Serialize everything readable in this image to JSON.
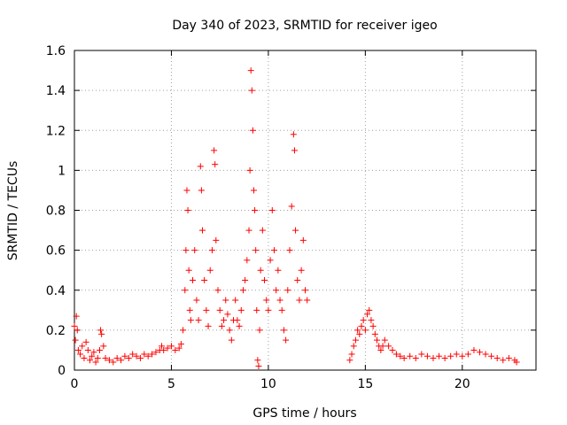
{
  "chart_data": {
    "type": "scatter",
    "title": "Day 340 of 2023, SRMTID for receiver igeo",
    "xlabel": "GPS time / hours",
    "ylabel": "SRMTID / TECUs",
    "xlim": [
      0,
      23.8
    ],
    "ylim": [
      0,
      1.6
    ],
    "x_ticks": [
      0,
      5,
      10,
      15,
      20
    ],
    "x_tick_labels": [
      "0",
      "5",
      "10",
      "15",
      "20"
    ],
    "y_ticks": [
      0,
      0.2,
      0.4,
      0.6,
      0.8,
      1.0,
      1.2,
      1.4,
      1.6
    ],
    "y_tick_labels": [
      "0",
      "0.2",
      "0.4",
      "0.6",
      "0.8",
      "1",
      "1.2",
      "1.4",
      "1.6"
    ],
    "grid": true,
    "marker": "+",
    "color": "#ff0000",
    "series": [
      {
        "name": "SRMTID",
        "points": [
          [
            0.0,
            0.22
          ],
          [
            0.05,
            0.15
          ],
          [
            0.1,
            0.27
          ],
          [
            0.15,
            0.2
          ],
          [
            0.2,
            0.1
          ],
          [
            0.3,
            0.08
          ],
          [
            0.4,
            0.12
          ],
          [
            0.5,
            0.06
          ],
          [
            0.6,
            0.14
          ],
          [
            0.7,
            0.1
          ],
          [
            0.8,
            0.05
          ],
          [
            0.9,
            0.07
          ],
          [
            1.0,
            0.09
          ],
          [
            1.1,
            0.04
          ],
          [
            1.2,
            0.06
          ],
          [
            1.3,
            0.1
          ],
          [
            1.35,
            0.2
          ],
          [
            1.4,
            0.18
          ],
          [
            1.5,
            0.12
          ],
          [
            1.6,
            0.06
          ],
          [
            1.8,
            0.05
          ],
          [
            2.0,
            0.04
          ],
          [
            2.2,
            0.06
          ],
          [
            2.4,
            0.05
          ],
          [
            2.6,
            0.07
          ],
          [
            2.8,
            0.06
          ],
          [
            3.0,
            0.08
          ],
          [
            3.2,
            0.07
          ],
          [
            3.4,
            0.06
          ],
          [
            3.6,
            0.08
          ],
          [
            3.8,
            0.07
          ],
          [
            4.0,
            0.08
          ],
          [
            4.2,
            0.09
          ],
          [
            4.4,
            0.1
          ],
          [
            4.5,
            0.12
          ],
          [
            4.6,
            0.1
          ],
          [
            4.8,
            0.11
          ],
          [
            5.0,
            0.12
          ],
          [
            5.2,
            0.1
          ],
          [
            5.4,
            0.11
          ],
          [
            5.5,
            0.13
          ],
          [
            5.6,
            0.2
          ],
          [
            5.7,
            0.4
          ],
          [
            5.75,
            0.6
          ],
          [
            5.8,
            0.9
          ],
          [
            5.85,
            0.8
          ],
          [
            5.9,
            0.5
          ],
          [
            5.95,
            0.3
          ],
          [
            6.0,
            0.25
          ],
          [
            6.1,
            0.45
          ],
          [
            6.2,
            0.6
          ],
          [
            6.3,
            0.35
          ],
          [
            6.4,
            0.25
          ],
          [
            6.5,
            1.02
          ],
          [
            6.55,
            0.9
          ],
          [
            6.6,
            0.7
          ],
          [
            6.7,
            0.45
          ],
          [
            6.8,
            0.3
          ],
          [
            6.9,
            0.22
          ],
          [
            7.0,
            0.5
          ],
          [
            7.1,
            0.6
          ],
          [
            7.2,
            1.1
          ],
          [
            7.25,
            1.03
          ],
          [
            7.3,
            0.65
          ],
          [
            7.4,
            0.4
          ],
          [
            7.5,
            0.3
          ],
          [
            7.6,
            0.22
          ],
          [
            7.7,
            0.25
          ],
          [
            7.8,
            0.35
          ],
          [
            7.9,
            0.28
          ],
          [
            8.0,
            0.2
          ],
          [
            8.1,
            0.15
          ],
          [
            8.2,
            0.25
          ],
          [
            8.3,
            0.35
          ],
          [
            8.4,
            0.25
          ],
          [
            8.5,
            0.22
          ],
          [
            8.6,
            0.3
          ],
          [
            8.7,
            0.4
          ],
          [
            8.8,
            0.45
          ],
          [
            8.9,
            0.55
          ],
          [
            9.0,
            0.7
          ],
          [
            9.05,
            1.0
          ],
          [
            9.1,
            1.5
          ],
          [
            9.15,
            1.4
          ],
          [
            9.2,
            1.2
          ],
          [
            9.25,
            0.9
          ],
          [
            9.3,
            0.8
          ],
          [
            9.35,
            0.6
          ],
          [
            9.4,
            0.3
          ],
          [
            9.45,
            0.05
          ],
          [
            9.5,
            0.02
          ],
          [
            9.55,
            0.2
          ],
          [
            9.6,
            0.5
          ],
          [
            9.7,
            0.7
          ],
          [
            9.8,
            0.45
          ],
          [
            9.9,
            0.35
          ],
          [
            10.0,
            0.3
          ],
          [
            10.1,
            0.55
          ],
          [
            10.2,
            0.8
          ],
          [
            10.3,
            0.6
          ],
          [
            10.4,
            0.4
          ],
          [
            10.5,
            0.5
          ],
          [
            10.6,
            0.35
          ],
          [
            10.7,
            0.3
          ],
          [
            10.8,
            0.2
          ],
          [
            10.9,
            0.15
          ],
          [
            11.0,
            0.4
          ],
          [
            11.1,
            0.6
          ],
          [
            11.2,
            0.82
          ],
          [
            11.3,
            1.18
          ],
          [
            11.35,
            1.1
          ],
          [
            11.4,
            0.7
          ],
          [
            11.5,
            0.45
          ],
          [
            11.6,
            0.35
          ],
          [
            11.7,
            0.5
          ],
          [
            11.8,
            0.65
          ],
          [
            11.9,
            0.4
          ],
          [
            12.0,
            0.35
          ],
          [
            14.2,
            0.05
          ],
          [
            14.3,
            0.08
          ],
          [
            14.4,
            0.12
          ],
          [
            14.5,
            0.15
          ],
          [
            14.6,
            0.2
          ],
          [
            14.7,
            0.18
          ],
          [
            14.8,
            0.22
          ],
          [
            14.9,
            0.25
          ],
          [
            15.0,
            0.2
          ],
          [
            15.1,
            0.28
          ],
          [
            15.2,
            0.3
          ],
          [
            15.3,
            0.25
          ],
          [
            15.4,
            0.22
          ],
          [
            15.5,
            0.18
          ],
          [
            15.6,
            0.15
          ],
          [
            15.7,
            0.12
          ],
          [
            15.8,
            0.1
          ],
          [
            15.9,
            0.12
          ],
          [
            16.0,
            0.15
          ],
          [
            16.2,
            0.12
          ],
          [
            16.4,
            0.1
          ],
          [
            16.6,
            0.08
          ],
          [
            16.8,
            0.07
          ],
          [
            17.0,
            0.06
          ],
          [
            17.3,
            0.07
          ],
          [
            17.6,
            0.06
          ],
          [
            17.9,
            0.08
          ],
          [
            18.2,
            0.07
          ],
          [
            18.5,
            0.06
          ],
          [
            18.8,
            0.07
          ],
          [
            19.1,
            0.06
          ],
          [
            19.4,
            0.07
          ],
          [
            19.7,
            0.08
          ],
          [
            20.0,
            0.07
          ],
          [
            20.3,
            0.08
          ],
          [
            20.6,
            0.1
          ],
          [
            20.9,
            0.09
          ],
          [
            21.2,
            0.08
          ],
          [
            21.5,
            0.07
          ],
          [
            21.8,
            0.06
          ],
          [
            22.1,
            0.05
          ],
          [
            22.4,
            0.06
          ],
          [
            22.7,
            0.05
          ],
          [
            22.8,
            0.04
          ]
        ]
      }
    ],
    "annotations": []
  }
}
